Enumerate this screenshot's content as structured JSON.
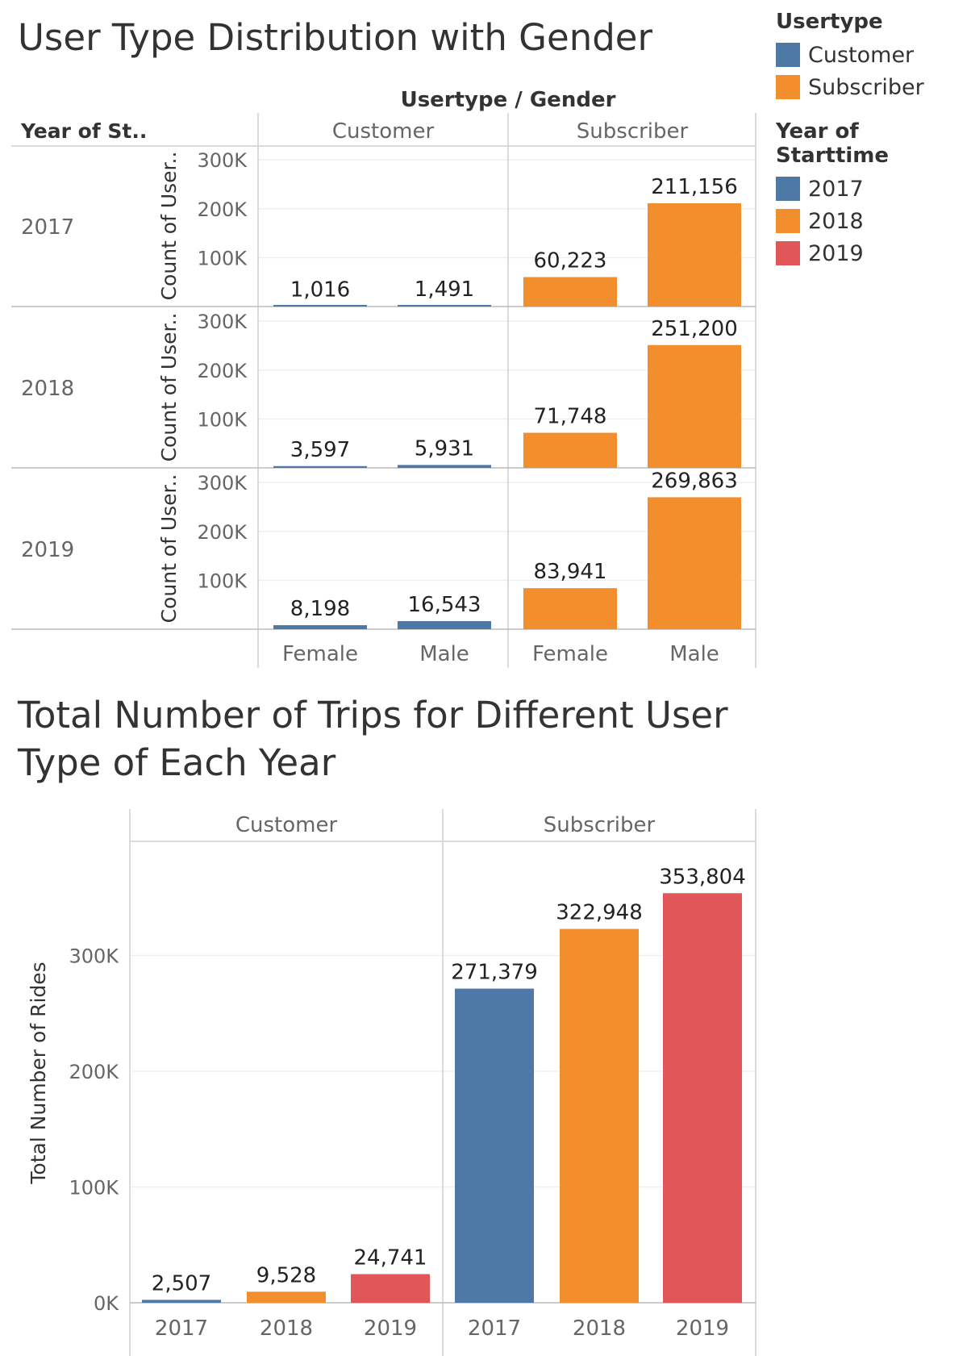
{
  "title1": "User Type Distribution with Gender",
  "title2": "Total Number of Trips for Different User Type of  Each Year",
  "legends": [
    {
      "heading": "Usertype",
      "items": [
        {
          "label": "Customer",
          "color": "#4e79a7"
        },
        {
          "label": "Subscriber",
          "color": "#f28e2b"
        }
      ]
    },
    {
      "heading": "Year of Starttime",
      "items": [
        {
          "label": "2017",
          "color": "#4e79a7"
        },
        {
          "label": "2018",
          "color": "#f28e2b"
        },
        {
          "label": "2019",
          "color": "#e15759"
        }
      ]
    }
  ],
  "chart_data": [
    {
      "type": "bar",
      "title": "User Type Distribution with Gender",
      "column_header": "Usertype / Gender",
      "row_header": "Year of St..",
      "ylabel": "Count of User..",
      "yticks": [
        "300K",
        "200K",
        "100K"
      ],
      "ylim": [
        0,
        330000
      ],
      "column_groups": [
        "Customer",
        "Subscriber"
      ],
      "categories": [
        "Female",
        "Male"
      ],
      "group_colors": [
        "#4e79a7",
        "#f28e2b"
      ],
      "rows": [
        {
          "year": "2017",
          "Customer": [
            1016,
            1491
          ],
          "Subscriber": [
            60223,
            211156
          ],
          "labels": [
            "1,016",
            "1,491",
            "60,223",
            "211,156"
          ]
        },
        {
          "year": "2018",
          "Customer": [
            3597,
            5931
          ],
          "Subscriber": [
            71748,
            251200
          ],
          "labels": [
            "3,597",
            "5,931",
            "71,748",
            "251,200"
          ]
        },
        {
          "year": "2019",
          "Customer": [
            8198,
            16543
          ],
          "Subscriber": [
            83941,
            269863
          ],
          "labels": [
            "8,198",
            "16,543",
            "83,941",
            "269,863"
          ]
        }
      ]
    },
    {
      "type": "bar",
      "title": "Total Number of Trips for Different User Type of  Each Year",
      "ylabel": "Total Number of Rides",
      "yticks": [
        "300K",
        "200K",
        "100K",
        "0K"
      ],
      "ylim": [
        0,
        380000
      ],
      "column_groups": [
        "Customer",
        "Subscriber"
      ],
      "categories": [
        "2017",
        "2018",
        "2019"
      ],
      "colors": [
        "#4e79a7",
        "#f28e2b",
        "#e15759"
      ],
      "series": [
        {
          "group": "Customer",
          "values": [
            2507,
            9528,
            24741
          ],
          "labels": [
            "2,507",
            "9,528",
            "24,741"
          ]
        },
        {
          "group": "Subscriber",
          "values": [
            271379,
            322948,
            353804
          ],
          "labels": [
            "271,379",
            "322,948",
            "353,804"
          ]
        }
      ]
    }
  ]
}
